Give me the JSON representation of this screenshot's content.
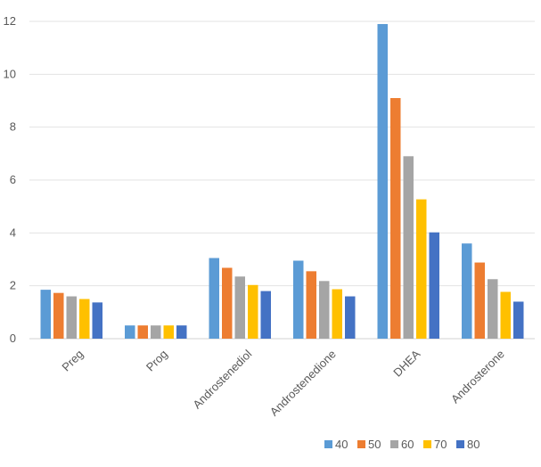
{
  "chart_data": {
    "type": "bar",
    "categories": [
      "Preg",
      "Prog",
      "Androstenediol",
      "Androstenedione",
      "DHEA",
      "Androsterone"
    ],
    "series": [
      {
        "name": "40",
        "color": "#5B9BD5",
        "values": [
          1.85,
          0.5,
          3.05,
          2.95,
          11.9,
          3.6
        ]
      },
      {
        "name": "50",
        "color": "#ED7D31",
        "values": [
          1.73,
          0.5,
          2.68,
          2.55,
          9.1,
          2.88
        ]
      },
      {
        "name": "60",
        "color": "#A5A5A5",
        "values": [
          1.6,
          0.5,
          2.35,
          2.18,
          6.9,
          2.25
        ]
      },
      {
        "name": "70",
        "color": "#FFC000",
        "values": [
          1.5,
          0.5,
          2.03,
          1.87,
          5.27,
          1.77
        ]
      },
      {
        "name": "80",
        "color": "#4472C4",
        "values": [
          1.37,
          0.5,
          1.8,
          1.6,
          4.02,
          1.4
        ]
      }
    ],
    "yticks": [
      "0",
      "2",
      "4",
      "6",
      "8",
      "10",
      "12"
    ],
    "ylim": [
      0,
      12
    ],
    "grid": true,
    "legend_position": "bottom-right"
  }
}
